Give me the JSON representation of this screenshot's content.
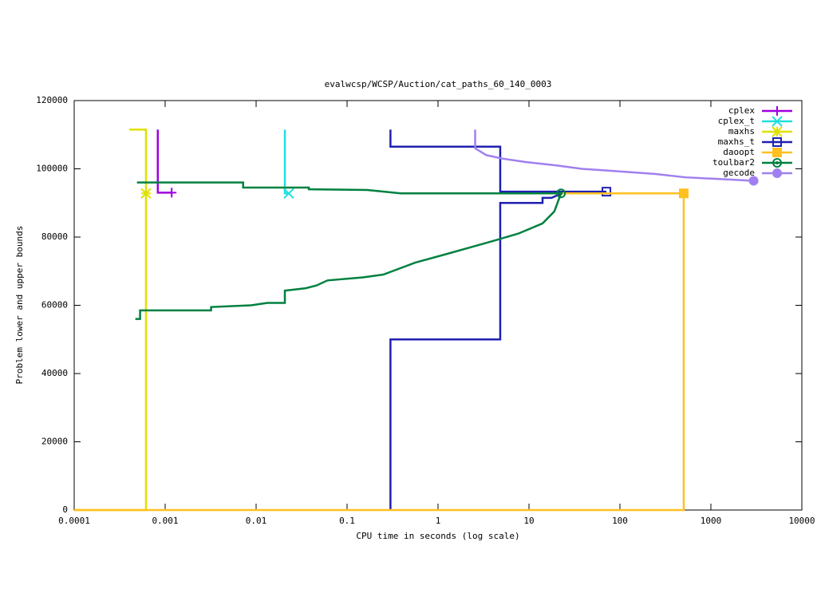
{
  "chart_data": {
    "type": "line",
    "title": "evalwcsp/WCSP/Auction/cat_paths_60_140_0003",
    "x_label": "CPU time in seconds (log scale)",
    "y_label": "Problem lower and upper bounds",
    "x_scale": "log",
    "xlim": [
      0.0001,
      10000
    ],
    "xticks": [
      0.0001,
      0.001,
      0.01,
      0.1,
      1,
      10,
      100,
      1000,
      10000
    ],
    "ylim": [
      0,
      120000
    ],
    "yticks": [
      0,
      20000,
      40000,
      60000,
      80000,
      100000,
      120000
    ],
    "legend": "top-right",
    "series": [
      {
        "name": "cplex",
        "color": "#a000e0",
        "marker": "plus",
        "x": [
          0.00083,
          0.00083,
          0.00118
        ],
        "values": [
          111500,
          93000,
          93000
        ]
      },
      {
        "name": "cplex_t",
        "color": "#20e0e0",
        "marker": "cross",
        "x": [
          0.0207,
          0.0207,
          0.0229
        ],
        "values": [
          111500,
          92800,
          92800
        ]
      },
      {
        "name": "maxhs",
        "color": "#e0e000",
        "marker": "star",
        "x": [
          0.0001,
          0.000615,
          0.000615,
          null,
          0.000403,
          0.000615,
          0.000615,
          0.000615
        ],
        "values": [
          0,
          0,
          92800,
          null,
          111500,
          111500,
          106000,
          92800
        ]
      },
      {
        "name": "maxhs_t",
        "color": "#2020b0",
        "marker": "square",
        "x": [
          0.3,
          0.3,
          4.83,
          4.83,
          14.1,
          14.1,
          17.7,
          22.9,
          71,
          null,
          0.3,
          0.3,
          4.83,
          4.83,
          71
        ],
        "values": [
          0,
          50000,
          50000,
          90000,
          90000,
          91500,
          91500,
          92800,
          92800,
          null,
          111500,
          106500,
          106500,
          93300,
          93300
        ]
      },
      {
        "name": "daoopt",
        "color": "#ffc020",
        "marker": "filled-square",
        "x": [
          0.0001,
          503,
          503,
          null,
          2.4,
          503
        ],
        "values": [
          0,
          0,
          92800,
          null,
          92800,
          92800
        ]
      },
      {
        "name": "toulbar2",
        "color": "#008040",
        "marker": "circle",
        "x": [
          0.00049,
          0.0072,
          0.0072,
          0.038,
          0.038,
          0.166,
          0.39,
          22.9,
          null,
          0.00047,
          0.00053,
          0.00053,
          0.0032,
          0.0032,
          0.0088,
          0.0133,
          0.0133,
          0.0207,
          0.0207,
          0.035,
          0.046,
          0.061,
          0.15,
          0.25,
          0.56,
          1.23,
          2.28,
          4.2,
          7.6,
          14.1,
          19,
          22.5
        ],
        "values": [
          96000,
          96000,
          94500,
          94500,
          94000,
          93800,
          92800,
          92800,
          null,
          56000,
          56000,
          58500,
          58500,
          59500,
          60000,
          60700,
          60700,
          60700,
          64300,
          65000,
          65800,
          67300,
          68200,
          69000,
          72500,
          75000,
          77000,
          79000,
          81000,
          84000,
          87500,
          92800
        ]
      },
      {
        "name": "gecode",
        "color": "#a080f0",
        "marker": "filled-circle",
        "x": [
          2.56,
          2.56,
          3.4,
          5.1,
          9.2,
          20,
          38,
          72,
          240,
          530,
          2950
        ],
        "values": [
          111500,
          106000,
          104000,
          103000,
          102000,
          101000,
          100000,
          99500,
          98500,
          97500,
          96500
        ]
      }
    ]
  }
}
